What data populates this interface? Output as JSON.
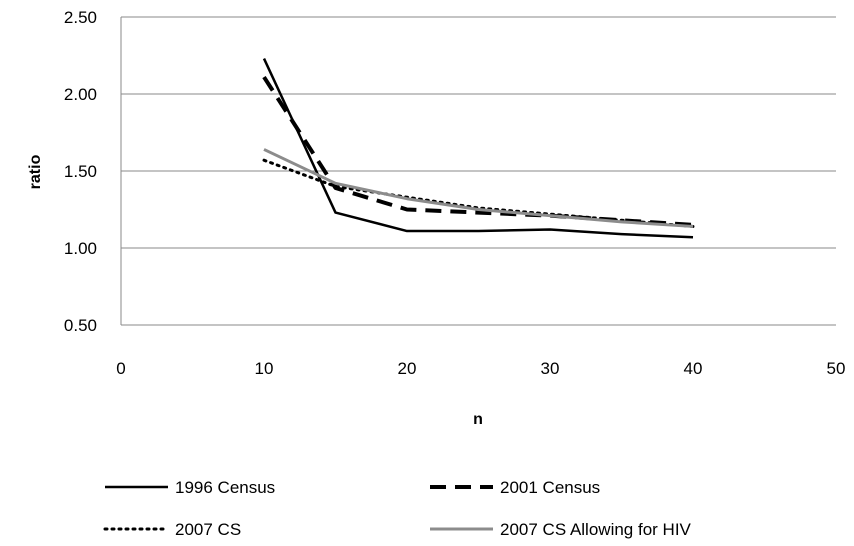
{
  "chart_data": {
    "type": "line",
    "xlabel": "n",
    "ylabel": "ratio",
    "xlim": [
      0,
      50
    ],
    "ylim": [
      0.5,
      2.5
    ],
    "x_ticks": [
      "0",
      "10",
      "20",
      "30",
      "40",
      "50"
    ],
    "y_ticks": [
      "0.50",
      "1.00",
      "1.50",
      "2.00",
      "2.50"
    ],
    "grid": "horizontal",
    "legend_position": "bottom",
    "series": [
      {
        "name": "1996 Census",
        "color": "#000000",
        "style": "solid",
        "x": [
          10,
          15,
          20,
          25,
          30,
          35,
          40
        ],
        "values": [
          2.23,
          1.23,
          1.11,
          1.11,
          1.12,
          1.09,
          1.07
        ]
      },
      {
        "name": "2001 Census",
        "color": "#000000",
        "style": "dashed",
        "x": [
          10,
          15,
          20,
          25,
          30,
          35,
          40
        ],
        "values": [
          2.11,
          1.39,
          1.25,
          1.23,
          1.21,
          1.18,
          1.15
        ]
      },
      {
        "name": "2007 CS",
        "color": "#000000",
        "style": "dotted",
        "x": [
          10,
          15,
          20,
          25,
          30,
          35,
          40
        ],
        "values": [
          1.57,
          1.4,
          1.33,
          1.26,
          1.22,
          1.18,
          1.14
        ]
      },
      {
        "name": "2007 CS Allowing for HIV",
        "color": "#8c8c8c",
        "style": "solid",
        "x": [
          10,
          15,
          20,
          25,
          30,
          35,
          40
        ],
        "values": [
          1.64,
          1.42,
          1.32,
          1.25,
          1.21,
          1.17,
          1.14
        ]
      }
    ]
  }
}
